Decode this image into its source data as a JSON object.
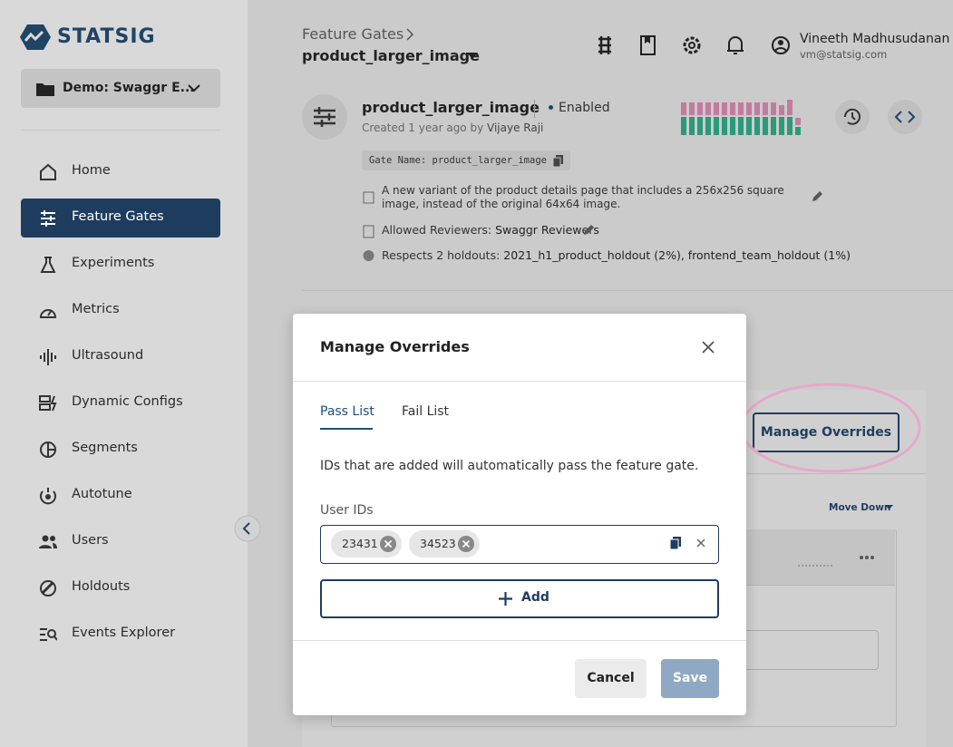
{
  "sidebar": {
    "logo": "STATSIG",
    "project": "Demo: Swaggr E...",
    "nav": [
      "Home",
      "Feature Gates",
      "Experiments",
      "Metrics",
      "Ultrasound",
      "Dynamic Configs",
      "Segments",
      "Autotune",
      "Users",
      "Holdouts",
      "Events Explorer"
    ]
  },
  "header": {
    "breadcrumb": "Feature Gates",
    "title": "product_larger_image",
    "user_name": "Vineeth Madhusudanan",
    "user_email": "vm@statsig.com"
  },
  "gate": {
    "name": "product_larger_image",
    "status": "Enabled",
    "created": "Created 1 year ago by",
    "creator": "Vijaye Raji",
    "gate_name_label": "Gate Name: product_larger_image",
    "description": "A new variant of the product details page that includes a 256x256 square image, instead of the original 64x64 image.",
    "reviewers_label": "Allowed Reviewers:",
    "reviewers": "Swaggr Reviewers",
    "holdouts_label": "Respects 2 holdouts:",
    "holdouts": "2021_h1_product_holdout (2%), frontend_team_holdout (1%)"
  },
  "background": {
    "manage_overrides": "Manage Overrides",
    "move_down": "Move Down"
  },
  "modal": {
    "title": "Manage Overrides",
    "tabs": [
      "Pass List",
      "Fail List"
    ],
    "description": "IDs that are added will automatically pass the feature gate.",
    "field_label": "User IDs",
    "ids": [
      "23431",
      "34523"
    ],
    "add": "Add",
    "cancel": "Cancel",
    "save": "Save"
  }
}
